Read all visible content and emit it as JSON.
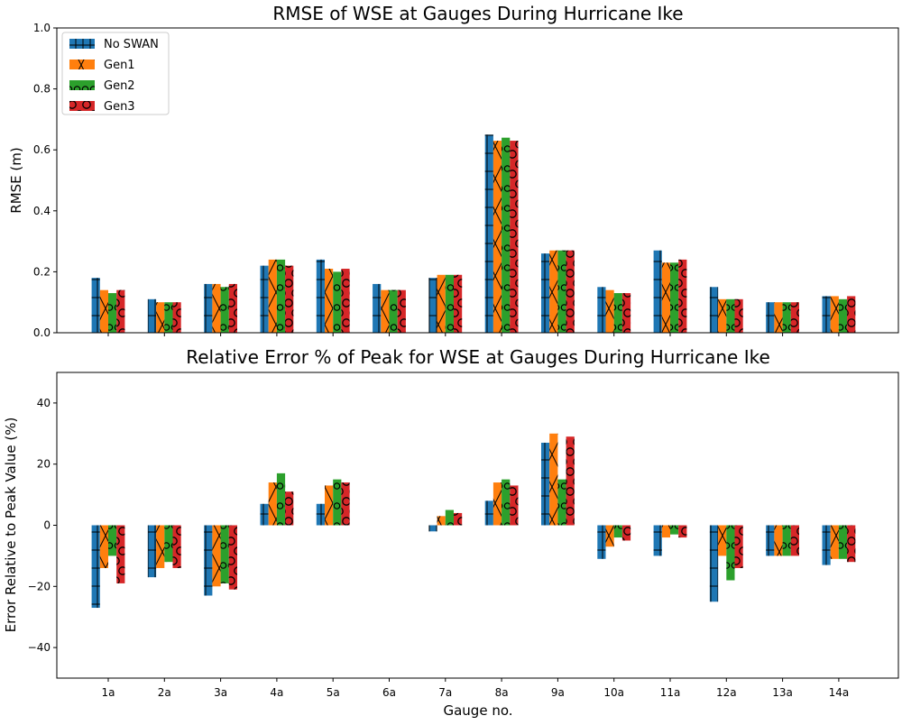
{
  "colors": {
    "No SWAN": "#1f77b4",
    "Gen1": "#ff7f0e",
    "Gen2": "#2ca02c",
    "Gen3": "#d62728"
  },
  "hatches": {
    "No SWAN": "plus",
    "Gen1": "cross",
    "Gen2": "circle",
    "Gen3": "bigcircle"
  },
  "chart_data": [
    {
      "type": "bar",
      "title": "RMSE of WSE at Gauges During Hurricane Ike",
      "xlabel": "",
      "ylabel": "RMSE (m)",
      "ylim": [
        0,
        1.0
      ],
      "yticks": [
        "0.0",
        "0.2",
        "0.4",
        "0.6",
        "0.8",
        "1.0"
      ],
      "ytick_values": [
        0,
        0.2,
        0.4,
        0.6,
        0.8,
        1.0
      ],
      "show_xtick_labels": false,
      "legend": "top-left",
      "categories": [
        "1a",
        "2a",
        "3a",
        "4a",
        "5a",
        "6a",
        "7a",
        "8a",
        "9a",
        "10a",
        "11a",
        "12a",
        "13a",
        "14a"
      ],
      "series": [
        {
          "name": "No SWAN",
          "values": [
            0.18,
            0.11,
            0.16,
            0.22,
            0.24,
            0.16,
            0.18,
            0.65,
            0.26,
            0.15,
            0.27,
            0.15,
            0.1,
            0.12
          ]
        },
        {
          "name": "Gen1",
          "values": [
            0.14,
            0.1,
            0.16,
            0.24,
            0.21,
            0.14,
            0.19,
            0.63,
            0.27,
            0.14,
            0.23,
            0.11,
            0.1,
            0.12
          ]
        },
        {
          "name": "Gen2",
          "values": [
            0.13,
            0.1,
            0.15,
            0.24,
            0.2,
            0.14,
            0.19,
            0.64,
            0.27,
            0.13,
            0.23,
            0.11,
            0.1,
            0.11
          ]
        },
        {
          "name": "Gen3",
          "values": [
            0.14,
            0.1,
            0.16,
            0.22,
            0.21,
            0.14,
            0.19,
            0.63,
            0.27,
            0.13,
            0.24,
            0.11,
            0.1,
            0.12
          ]
        }
      ]
    },
    {
      "type": "bar",
      "title": "Relative Error % of Peak for WSE at Gauges During Hurricane Ike",
      "xlabel": "Gauge no.",
      "ylabel": "Error Relative to Peak Value (%)",
      "ylim": [
        -50,
        50
      ],
      "yticks": [
        "−40",
        "−20",
        "0",
        "20",
        "40"
      ],
      "ytick_values": [
        -40,
        -20,
        0,
        20,
        40
      ],
      "show_xtick_labels": true,
      "categories": [
        "1a",
        "2a",
        "3a",
        "4a",
        "5a",
        "6a",
        "7a",
        "8a",
        "9a",
        "10a",
        "11a",
        "12a",
        "13a",
        "14a"
      ],
      "series": [
        {
          "name": "No SWAN",
          "values": [
            -27,
            -17,
            -23,
            7,
            7,
            0,
            -2,
            8,
            27,
            -11,
            -10,
            -25,
            -10,
            -13
          ]
        },
        {
          "name": "Gen1",
          "values": [
            -14,
            -14,
            -20,
            14,
            13,
            0,
            3,
            14,
            30,
            -7,
            -4,
            -10,
            -10,
            -11
          ]
        },
        {
          "name": "Gen2",
          "values": [
            -10,
            -12,
            -19,
            17,
            15,
            0,
            5,
            15,
            15,
            -4,
            -3,
            -18,
            -10,
            -11
          ]
        },
        {
          "name": "Gen3",
          "values": [
            -19,
            -14,
            -21,
            11,
            14,
            0,
            4,
            13,
            29,
            -5,
            -4,
            -14,
            -10,
            -12
          ]
        }
      ]
    }
  ]
}
